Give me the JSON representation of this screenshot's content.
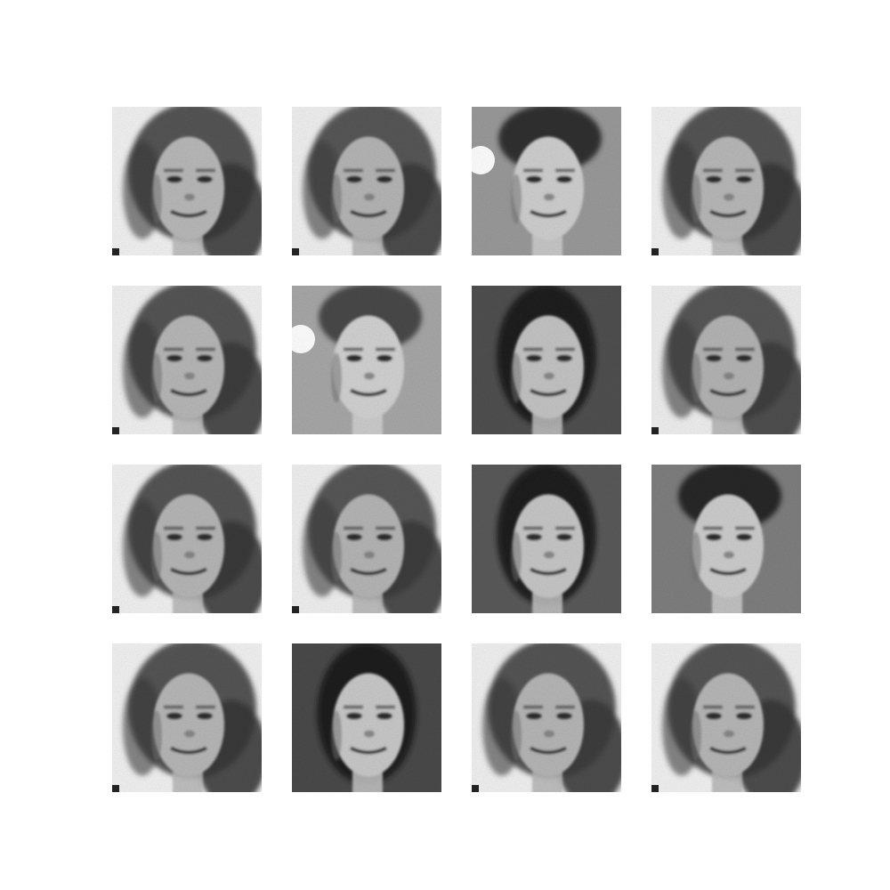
{
  "figure": {
    "background": "#ffffff",
    "grid": {
      "rows": 4,
      "cols": 4
    },
    "tiles": [
      {
        "face": "woman-light-bg-curly-hair",
        "bg": "#f2f2f2",
        "hair": "#3a3a3a",
        "skin": "#b9b9b9"
      },
      {
        "face": "woman-light-bg-curly-hair",
        "bg": "#f0f0f0",
        "hair": "#3c3c3c",
        "skin": "#b5b5b5"
      },
      {
        "face": "man-gray-bg-short-hair-white-blob",
        "bg": "#9a9a9a",
        "hair": "#2a2a2a",
        "skin": "#cfcfcf"
      },
      {
        "face": "woman-light-bg-curly-hair",
        "bg": "#f2f2f2",
        "hair": "#3a3a3a",
        "skin": "#b8b8b8"
      },
      {
        "face": "woman-light-bg-curly-hair",
        "bg": "#f1f1f1",
        "hair": "#3b3b3b",
        "skin": "#b7b7b7"
      },
      {
        "face": "man-gray-bg-short-hair-white-blob",
        "bg": "#a8a8a8",
        "hair": "#444444",
        "skin": "#d2d2d2"
      },
      {
        "face": "woman-dark-bg-long-hair",
        "bg": "#505050",
        "hair": "#1e1e1e",
        "skin": "#c4c4c4"
      },
      {
        "face": "woman-light-bg-curly-hair",
        "bg": "#efefef",
        "hair": "#3d3d3d",
        "skin": "#b4b4b4"
      },
      {
        "face": "woman-light-bg-curly-hair",
        "bg": "#f2f2f2",
        "hair": "#3a3a3a",
        "skin": "#b6b6b6"
      },
      {
        "face": "woman-light-bg-curly-hair",
        "bg": "#f0f0f0",
        "hair": "#3c3c3c",
        "skin": "#b5b5b5"
      },
      {
        "face": "woman-dark-bg-long-hair",
        "bg": "#5a5a5a",
        "hair": "#1f1f1f",
        "skin": "#c7c7c7"
      },
      {
        "face": "man-gray-bg-short-hair",
        "bg": "#7f7f7f",
        "hair": "#252525",
        "skin": "#cdcdcd"
      },
      {
        "face": "woman-light-bg-curly-hair",
        "bg": "#f2f2f2",
        "hair": "#3a3a3a",
        "skin": "#b7b7b7"
      },
      {
        "face": "woman-dark-bg-long-hair",
        "bg": "#4a4a4a",
        "hair": "#202020",
        "skin": "#c9c9c9"
      },
      {
        "face": "woman-light-bg-curly-hair",
        "bg": "#f1f1f1",
        "hair": "#3b3b3b",
        "skin": "#b6b6b6"
      },
      {
        "face": "woman-light-bg-curly-hair",
        "bg": "#f2f2f2",
        "hair": "#3a3a3a",
        "skin": "#b7b7b7"
      }
    ]
  }
}
